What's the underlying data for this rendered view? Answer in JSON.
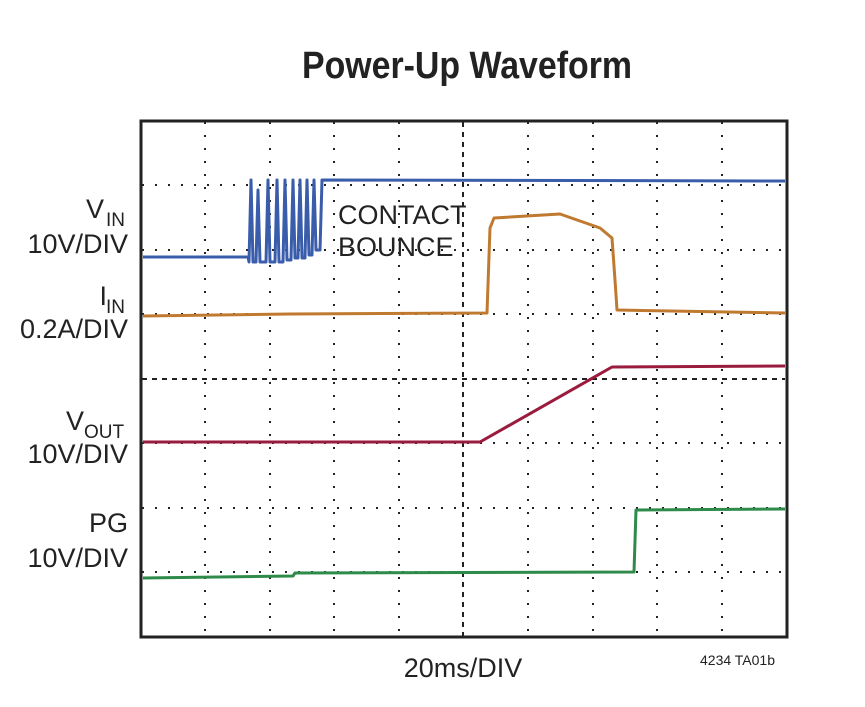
{
  "title": "Power-Up Waveform",
  "traces": [
    {
      "name": "V",
      "subscript": "IN",
      "scale": "10V/DIV"
    },
    {
      "name": "I",
      "subscript": "IN",
      "scale": "0.2A/DIV"
    },
    {
      "name": "V",
      "subscript": "OUT",
      "scale": "10V/DIV"
    },
    {
      "name": "PG",
      "scale": "10V/DIV"
    }
  ],
  "annotation": [
    "CONTACT",
    "BOUNCE"
  ],
  "x_label": "20ms/DIV",
  "figure_id": "4234 TA01b"
}
